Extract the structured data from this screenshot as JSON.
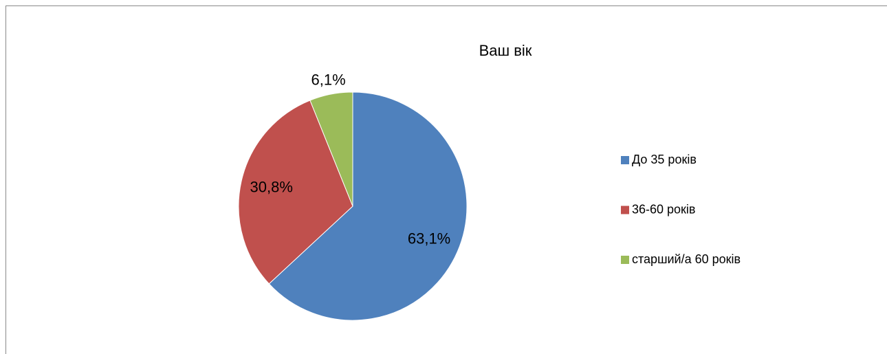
{
  "chart_data": {
    "type": "pie",
    "title": "Ваш вік",
    "categories": [
      "До 35 років",
      "36-60 років",
      "старший/а 60 років"
    ],
    "values": [
      63.1,
      30.8,
      6.1
    ],
    "value_labels": [
      "63,1%",
      "30,8%",
      "6,1%"
    ],
    "colors": [
      "#4f81bd",
      "#c0504d",
      "#9bbb59"
    ],
    "legend": "right"
  }
}
